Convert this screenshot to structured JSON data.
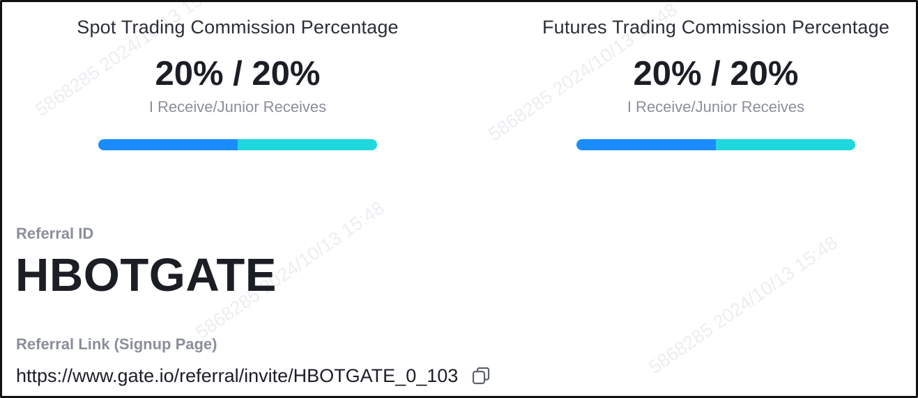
{
  "watermark_text": "5868285 2024/10/13 15:48",
  "commissions": {
    "spot": {
      "title": "Spot Trading Commission Percentage",
      "value": "20% / 20%",
      "subtitle": "I Receive/Junior Receives",
      "split_fraction": 0.5,
      "colors": {
        "mine": "#1a8cff",
        "junior": "#1fd8dd"
      }
    },
    "futures": {
      "title": "Futures Trading Commission Percentage",
      "value": "20% / 20%",
      "subtitle": "I Receive/Junior Receives",
      "split_fraction": 0.5,
      "colors": {
        "mine": "#1a8cff",
        "junior": "#1fd8dd"
      }
    }
  },
  "referral": {
    "id_label": "Referral ID",
    "id_value": "HBOTGATE",
    "link_label": "Referral Link (Signup Page)",
    "link_value": "https://www.gate.io/referral/invite/HBOTGATE_0_103",
    "copy_icon": "copy-icon"
  }
}
